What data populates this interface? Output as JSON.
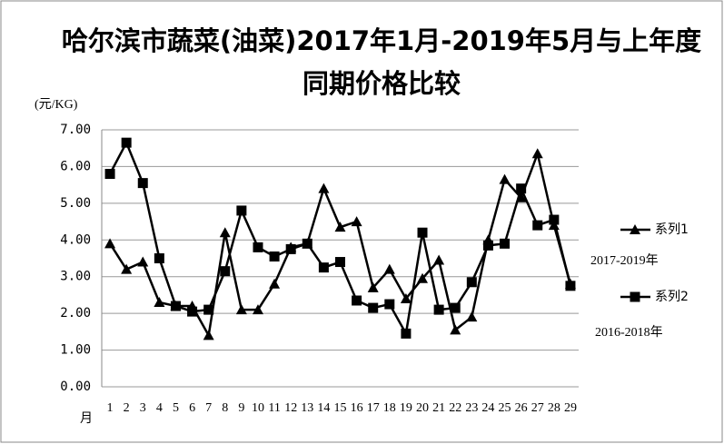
{
  "chart_data": {
    "type": "line",
    "title": "哈尔滨市蔬菜(油菜)2017年1月-2019年5月与上年度同期价格比较",
    "y_label": "(元/KG)",
    "x_label": "月",
    "categories": [
      "1",
      "2",
      "3",
      "4",
      "5",
      "6",
      "7",
      "8",
      "9",
      "10",
      "11",
      "12",
      "13",
      "14",
      "15",
      "16",
      "17",
      "18",
      "19",
      "20",
      "21",
      "22",
      "23",
      "24",
      "25",
      "26",
      "27",
      "28",
      "29"
    ],
    "series": [
      {
        "name": "系列1",
        "color": "#000000",
        "marker": "triangle",
        "values": [
          3.9,
          3.2,
          3.4,
          2.3,
          2.2,
          2.2,
          1.4,
          4.2,
          2.1,
          2.1,
          2.8,
          3.8,
          3.9,
          5.4,
          4.35,
          4.5,
          2.7,
          3.2,
          2.4,
          2.95,
          3.45,
          1.55,
          1.9,
          4.0,
          5.65,
          5.15,
          6.35,
          4.4,
          2.8
        ]
      },
      {
        "name": "系列2",
        "color": "#000000",
        "marker": "square",
        "values": [
          5.8,
          6.65,
          5.55,
          3.5,
          2.2,
          2.05,
          2.1,
          3.15,
          4.8,
          3.8,
          3.55,
          3.75,
          3.9,
          3.25,
          3.4,
          2.35,
          2.15,
          2.25,
          1.45,
          4.2,
          2.1,
          2.15,
          2.85,
          3.85,
          3.9,
          5.4,
          4.4,
          4.55,
          2.75
        ]
      }
    ],
    "annotations": [
      "2017-2019年",
      "2016-2018年"
    ],
    "ylim": [
      0,
      7
    ],
    "yticks": [
      {
        "value": 0,
        "label": "0.00"
      },
      {
        "value": 1,
        "label": "1.00"
      },
      {
        "value": 2,
        "label": "2.00"
      },
      {
        "value": 3,
        "label": "3.00"
      },
      {
        "value": 4,
        "label": "4.00"
      },
      {
        "value": 5,
        "label": "5.00"
      },
      {
        "value": 6,
        "label": "6.00"
      },
      {
        "value": 7,
        "label": "7.00"
      }
    ],
    "grid": true,
    "legend": "right"
  }
}
